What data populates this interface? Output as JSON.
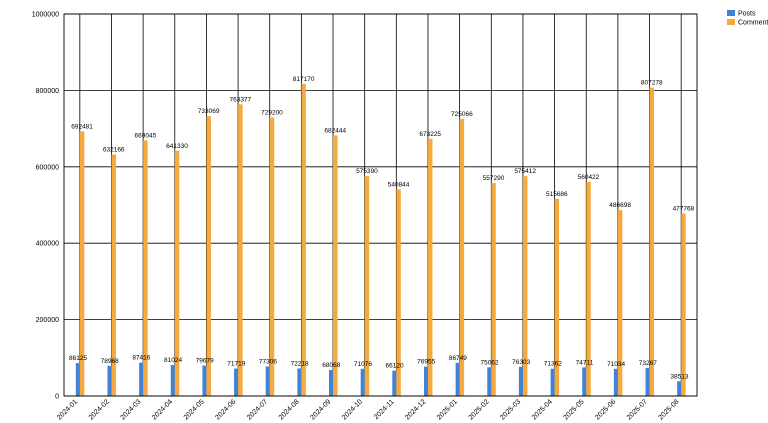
{
  "chart_data": {
    "type": "bar",
    "categories": [
      "2024-01",
      "2024-02",
      "2024-03",
      "2024-04",
      "2024-05",
      "2024-06",
      "2024-07",
      "2024-08",
      "2024-09",
      "2024-10",
      "2024-11",
      "2024-12",
      "2025-01",
      "2025-02",
      "2025-03",
      "2025-04",
      "2025-05",
      "2025-06",
      "2025-07",
      "2025-08"
    ],
    "series": [
      {
        "name": "Posts",
        "color": "#3f82d8",
        "values": [
          86125,
          78968,
          87416,
          81024,
          79679,
          71719,
          77306,
          72218,
          68068,
          71076,
          66120,
          76955,
          86749,
          75062,
          76303,
          71362,
          74711,
          71034,
          73267,
          38513
        ]
      },
      {
        "name": "Comments",
        "color": "#f6aa3d",
        "values": [
          692481,
          632166,
          669045,
          641330,
          733069,
          763377,
          729200,
          817170,
          682444,
          575390,
          540844,
          673225,
          725066,
          557290,
          575412,
          515686,
          560422,
          486698,
          807278,
          477768
        ]
      }
    ],
    "ylim": [
      0,
      1000000
    ],
    "yticks": [
      0,
      200000,
      400000,
      600000,
      800000,
      1000000
    ],
    "grid": true,
    "legend_position": "top-right"
  }
}
